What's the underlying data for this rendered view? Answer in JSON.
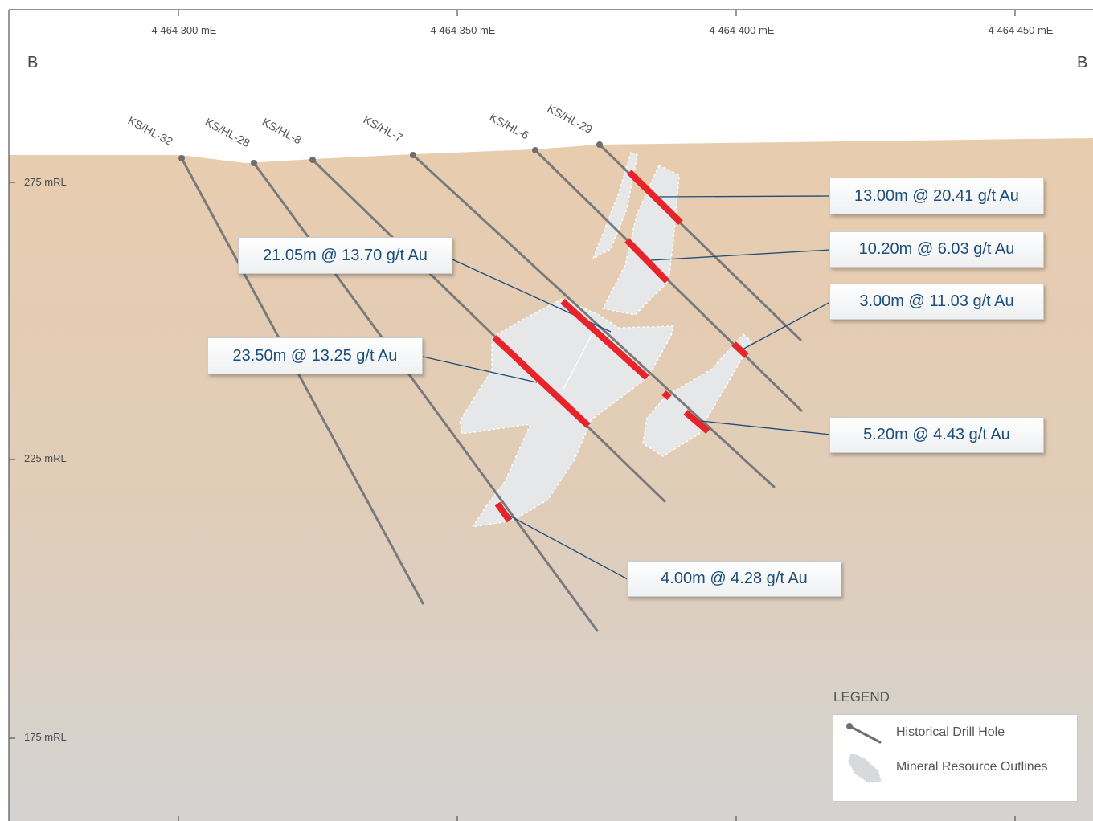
{
  "section": {
    "left_label": "B",
    "right_label": "B"
  },
  "eastings": [
    "4 464 300 mE",
    "4 464 350 mE",
    "4 464 400 mE",
    "4 464 450 mE"
  ],
  "elevations": [
    "275 mRL",
    "225 mRL",
    "175 mRL"
  ],
  "drill_holes": [
    "KS/HL-32",
    "KS/HL-28",
    "KS/HL-8",
    "KS/HL-7",
    "KS/HL-6",
    "KS/HL-29"
  ],
  "intercepts": [
    "13.00m @ 20.41 g/t Au",
    "10.20m @ 6.03 g/t Au",
    "3.00m @ 11.03 g/t Au",
    "21.05m @ 13.70 g/t Au",
    "23.50m @ 13.25 g/t Au",
    "5.20m @ 4.43 g/t Au",
    "4.00m @ 4.28 g/t Au"
  ],
  "legend": {
    "title": "LEGEND",
    "items": [
      "Historical Drill Hole",
      "Mineral Resource Outlines"
    ]
  },
  "colors": {
    "intercept": "#e8242b",
    "drill_hole": "#7a7a7a",
    "resource_fill": "#e6e7e9",
    "ground_top": "#e7cdb0",
    "ground_bottom": "#d6d4d2",
    "callout_text": "#1d4d7a"
  }
}
